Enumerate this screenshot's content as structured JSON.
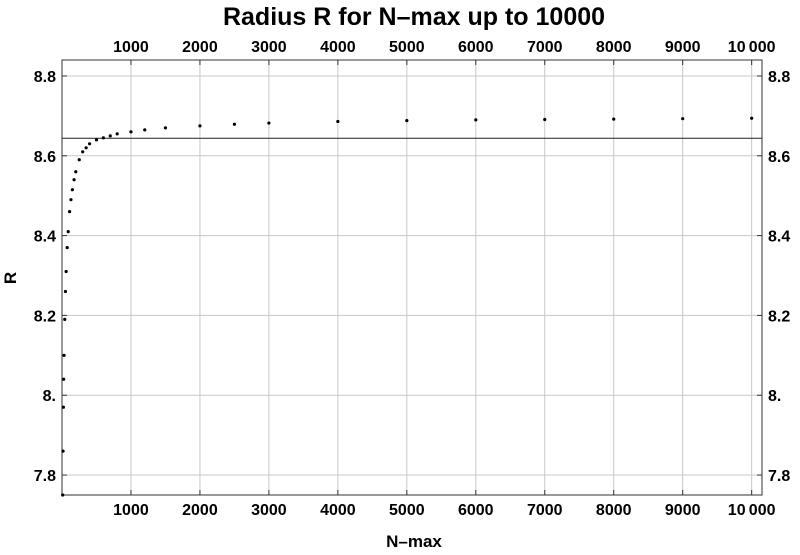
{
  "chart_data": {
    "type": "scatter",
    "title": "Radius R for N–max up to 10000",
    "xlabel": "N–max",
    "ylabel": "R",
    "xlim": [
      0,
      10150
    ],
    "ylim": [
      7.75,
      8.84
    ],
    "x_ticks": [
      1000,
      2000,
      3000,
      4000,
      5000,
      6000,
      7000,
      8000,
      9000,
      10000
    ],
    "x_tick_labels": [
      "1000",
      "2000",
      "3000",
      "4000",
      "5000",
      "6000",
      "7000",
      "8000",
      "9000",
      "10 000"
    ],
    "y_ticks": [
      7.8,
      8.0,
      8.2,
      8.4,
      8.6,
      8.8
    ],
    "y_tick_labels": [
      "7.8",
      "8.",
      "8.2",
      "8.4",
      "8.6",
      "8.8"
    ],
    "grid": true,
    "reference_line_y": 8.644,
    "series": [
      {
        "x": [
          10,
          15,
          20,
          25,
          30,
          40,
          50,
          60,
          75,
          90,
          110,
          130,
          150,
          175,
          200,
          250,
          300,
          350,
          400,
          500,
          600,
          700,
          800,
          1000,
          1200,
          1500,
          2000,
          2500,
          3000,
          4000,
          5000,
          6000,
          7000,
          8000,
          9000,
          10000
        ],
        "y": [
          7.75,
          7.86,
          7.97,
          8.04,
          8.1,
          8.19,
          8.26,
          8.31,
          8.37,
          8.41,
          8.46,
          8.49,
          8.515,
          8.54,
          8.56,
          8.59,
          8.61,
          8.62,
          8.63,
          8.64,
          8.645,
          8.65,
          8.655,
          8.66,
          8.665,
          8.67,
          8.675,
          8.679,
          8.682,
          8.686,
          8.688,
          8.69,
          8.691,
          8.692,
          8.693,
          8.694
        ]
      }
    ]
  }
}
